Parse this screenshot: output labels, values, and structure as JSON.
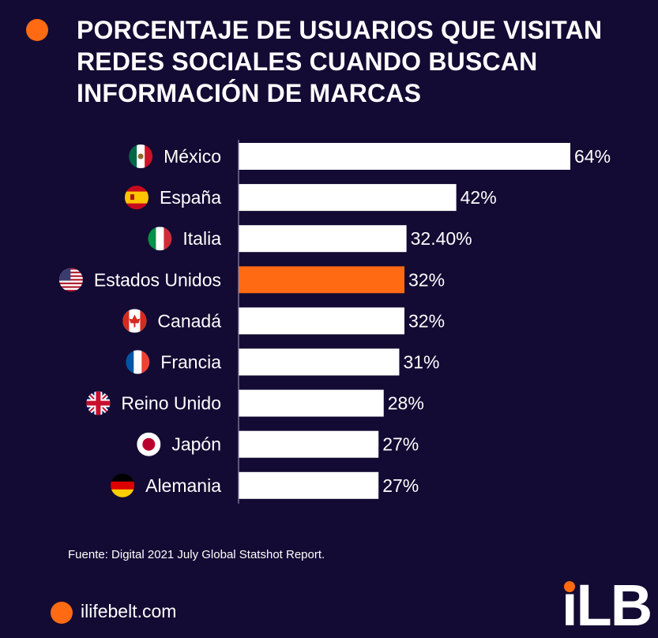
{
  "title_lines": [
    "PORCENTAJE DE USUARIOS QUE VISITAN",
    "REDES SOCIALES CUANDO BUSCAN",
    "INFORMACIÓN DE MARCAS"
  ],
  "chart_data": {
    "type": "bar",
    "orientation": "horizontal",
    "categories": [
      "México",
      "España",
      "Italia",
      "Estados Unidos",
      "Canadá",
      "Francia",
      "Reino Unido",
      "Japón",
      "Alemania"
    ],
    "values": [
      64,
      42,
      32.4,
      32,
      32,
      31,
      28,
      27,
      27
    ],
    "value_labels": [
      "64%",
      "42%",
      "32.40%",
      "32%",
      "32%",
      "31%",
      "28%",
      "27%",
      "27%"
    ],
    "flag_icons": [
      "mexico-flag-icon",
      "spain-flag-icon",
      "italy-flag-icon",
      "usa-flag-icon",
      "canada-flag-icon",
      "france-flag-icon",
      "uk-flag-icon",
      "japan-flag-icon",
      "germany-flag-icon"
    ],
    "highlight_index": 3,
    "bar_color": "#ffffff",
    "highlight_color": "#ff6a13"
  },
  "source": "Fuente: Digital 2021 July Global Statshot Report.",
  "footer": {
    "site": "ilifebelt.com",
    "logo_text": "iLB"
  },
  "colors": {
    "background": "#130b33",
    "accent": "#ff6a13",
    "text": "#ffffff"
  }
}
